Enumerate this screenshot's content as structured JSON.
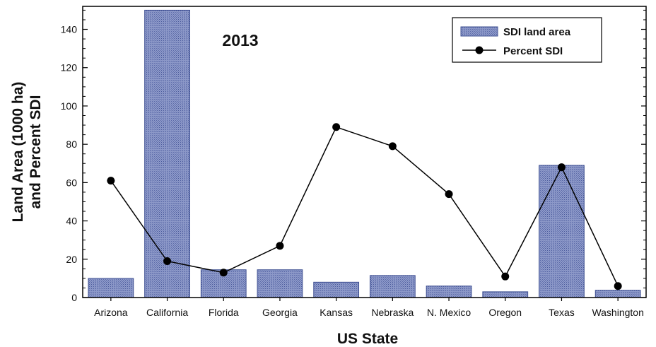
{
  "chart_data": {
    "type": "bar",
    "title": "2013",
    "xlabel": "US State",
    "ylabel_line1": "Land Area (1000 ha)",
    "ylabel_line2": "and Percent SDI",
    "categories": [
      "Arizona",
      "California",
      "Florida",
      "Georgia",
      "Kansas",
      "Nebraska",
      "N. Mexico",
      "Oregon",
      "Texas",
      "Washington"
    ],
    "series": [
      {
        "name": "SDI land area",
        "type": "bar",
        "values": [
          10,
          150,
          14.5,
          14.5,
          8,
          11.5,
          6,
          3,
          69,
          3.8
        ]
      },
      {
        "name": "Percent SDI",
        "type": "line",
        "values": [
          61,
          19,
          13,
          27,
          89,
          79,
          54,
          11,
          68,
          6
        ]
      }
    ],
    "ylim": [
      0,
      152
    ],
    "yticks": [
      0,
      20,
      40,
      60,
      80,
      100,
      120,
      140
    ],
    "legend_position": "top-right",
    "colors": {
      "bar_fill": "#6f7db4",
      "bar_stroke": "#3e4f92",
      "line": "#000000",
      "marker": "#000000"
    }
  }
}
